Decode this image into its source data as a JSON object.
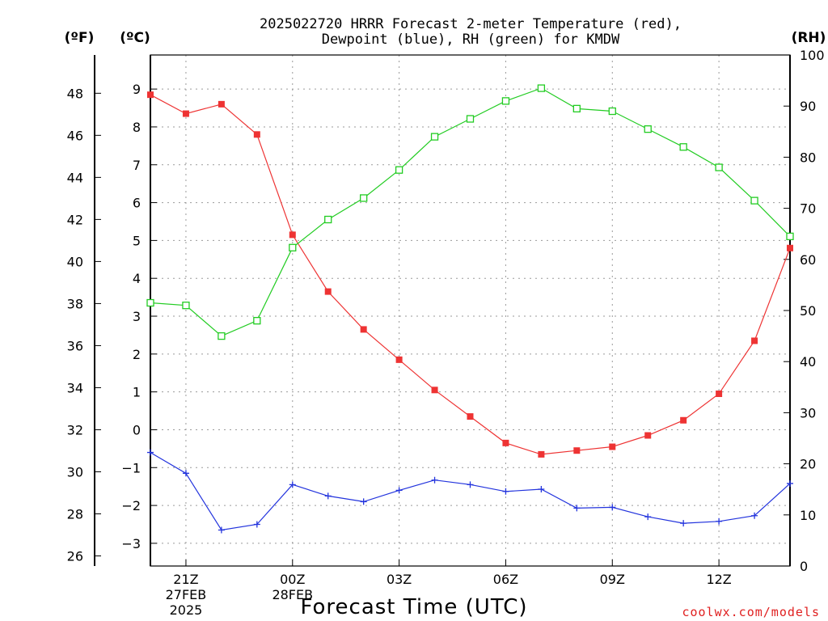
{
  "title": {
    "line1": "2025022720 HRRR Forecast 2-meter Temperature (red),",
    "line2": "Dewpoint (blue), RH (green) for KMDW"
  },
  "units": {
    "fahrenheit": "(ºF)",
    "celsius": "(ºC)",
    "rh": "(RH)"
  },
  "xaxis": {
    "label": "Forecast Time (UTC)",
    "ticks": [
      {
        "label": "21Z",
        "sub1": "27FEB",
        "sub2": "2025",
        "hour": 1
      },
      {
        "label": "00Z",
        "sub1": "28FEB",
        "sub2": "",
        "hour": 4
      },
      {
        "label": "03Z",
        "sub1": "",
        "sub2": "",
        "hour": 7
      },
      {
        "label": "06Z",
        "sub1": "",
        "sub2": "",
        "hour": 10
      },
      {
        "label": "09Z",
        "sub1": "",
        "sub2": "",
        "hour": 13
      },
      {
        "label": "12Z",
        "sub1": "",
        "sub2": "",
        "hour": 16
      }
    ]
  },
  "credit": "coolwx.com/models",
  "chart_data": {
    "type": "line",
    "x": [
      "20Z",
      "21Z",
      "22Z",
      "23Z",
      "00Z",
      "01Z",
      "02Z",
      "03Z",
      "04Z",
      "05Z",
      "06Z",
      "07Z",
      "08Z",
      "09Z",
      "10Z",
      "11Z",
      "12Z",
      "13Z",
      "14Z"
    ],
    "ylim_celsius": [
      -3.6,
      9.9
    ],
    "ylim_fahrenheit": [
      25.52,
      49.82
    ],
    "ylim_rh": [
      0,
      100
    ],
    "yticks_celsius": [
      -3,
      -2,
      -1,
      0,
      1,
      2,
      3,
      4,
      5,
      6,
      7,
      8,
      9
    ],
    "yticks_fahrenheit": [
      26,
      28,
      30,
      32,
      34,
      36,
      38,
      40,
      42,
      44,
      46,
      48
    ],
    "yticks_rh": [
      0,
      10,
      20,
      30,
      40,
      50,
      60,
      70,
      80,
      90,
      100
    ],
    "grid": true,
    "series": [
      {
        "name": "Temperature",
        "axis": "celsius",
        "color": "#ee3333",
        "marker": "filled-square",
        "values": [
          8.85,
          8.35,
          8.6,
          7.8,
          5.15,
          3.65,
          2.65,
          1.85,
          1.05,
          0.35,
          -0.35,
          -0.65,
          -0.55,
          -0.45,
          -0.15,
          0.25,
          0.95,
          2.35,
          4.8
        ]
      },
      {
        "name": "Dewpoint",
        "axis": "celsius",
        "color": "#2233dd",
        "marker": "plus",
        "values": [
          -0.6,
          -1.15,
          -2.65,
          -2.5,
          -1.45,
          -1.75,
          -1.9,
          -1.6,
          -1.33,
          -1.45,
          -1.63,
          -1.57,
          -2.07,
          -2.05,
          -2.3,
          -2.47,
          -2.42,
          -2.27,
          -1.42
        ]
      },
      {
        "name": "RH",
        "axis": "rh",
        "color": "#22cc22",
        "marker": "open-square",
        "values": [
          51.5,
          51,
          45,
          48,
          62.3,
          67.8,
          72,
          77.5,
          84,
          87.5,
          91,
          93.5,
          89.5,
          89,
          85.5,
          82,
          78,
          71.5,
          64.5
        ]
      }
    ]
  }
}
